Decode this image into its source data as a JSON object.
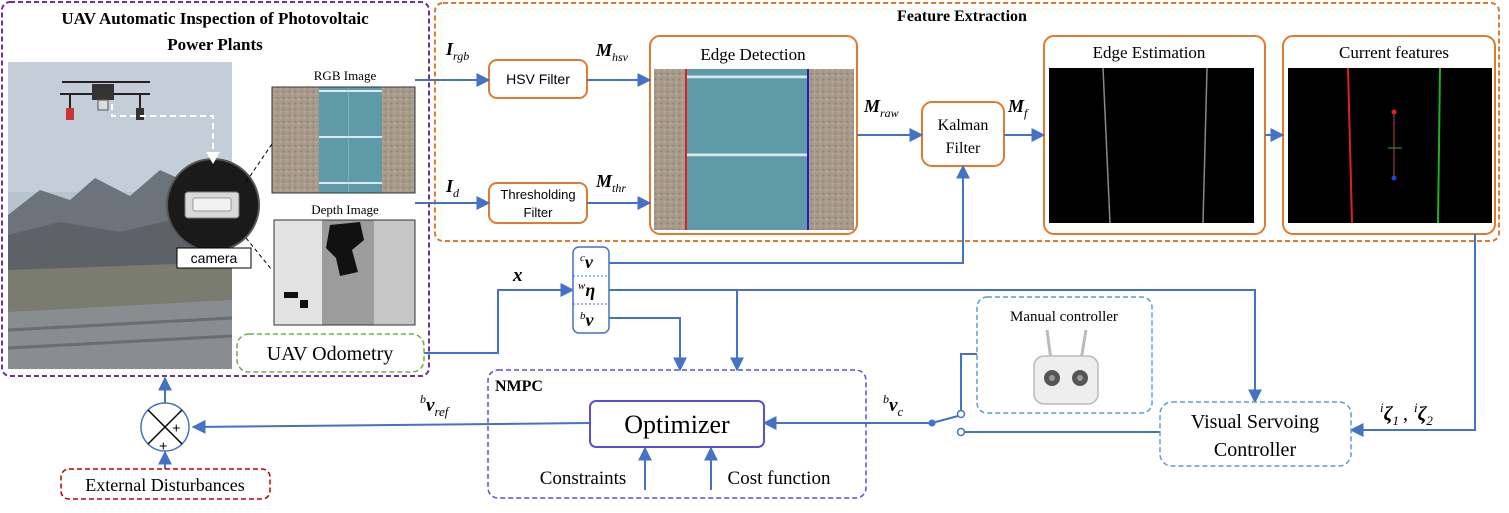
{
  "uav_panel": {
    "title_line1": "UAV Automatic Inspection of Photovoltaic",
    "title_line2": "Power Plants",
    "camera_label": "camera",
    "rgb_label": "RGB Image",
    "depth_label": "Depth Image"
  },
  "feature_extraction": {
    "title": "Feature Extraction",
    "hsv_filter": "HSV Filter",
    "thresholding_line1": "Thresholding",
    "thresholding_line2": "Filter",
    "edge_detection": "Edge Detection",
    "kalman_line1": "Kalman",
    "kalman_line2": "Filter",
    "edge_estimation": "Edge Estimation",
    "current_features": "Current features",
    "sym_I": "I",
    "sub_rgb": "rgb",
    "sub_d": "d",
    "sym_M": "M",
    "sub_hsv": "hsv",
    "sub_thr": "thr",
    "sub_raw": "raw",
    "sub_f": "f"
  },
  "state": {
    "x_symbol": "x",
    "sup_c": "c",
    "sup_w": "w",
    "sup_b": "b",
    "nu": "ν",
    "eta": "η"
  },
  "odometry": {
    "label": "UAV Odometry"
  },
  "nmpc": {
    "title": "NMPC",
    "optimizer": "Optimizer",
    "constraints": "Constraints",
    "cost_function": "Cost function",
    "sub_ref": "ref",
    "sub_c": "c"
  },
  "manual": {
    "label": "Manual controller"
  },
  "visual_servoing": {
    "line1": "Visual Servoing",
    "line2": "Controller"
  },
  "zeta": {
    "sup_i": "i",
    "zeta": "ζ",
    "sub1": "1",
    "sub2": "2",
    "separator": ","
  },
  "disturbances": {
    "label": "External Disturbances"
  },
  "summer": {
    "plus_right": "+",
    "plus_bottom": "+"
  },
  "colors": {
    "purple": "#7030A0",
    "orange": "#E07A2C",
    "blue_arrow": "#4472C4",
    "green": "#70AD47",
    "red": "#C00000",
    "nmpc": "#5B4FD6",
    "manual_blue": "#5B9BD5"
  }
}
